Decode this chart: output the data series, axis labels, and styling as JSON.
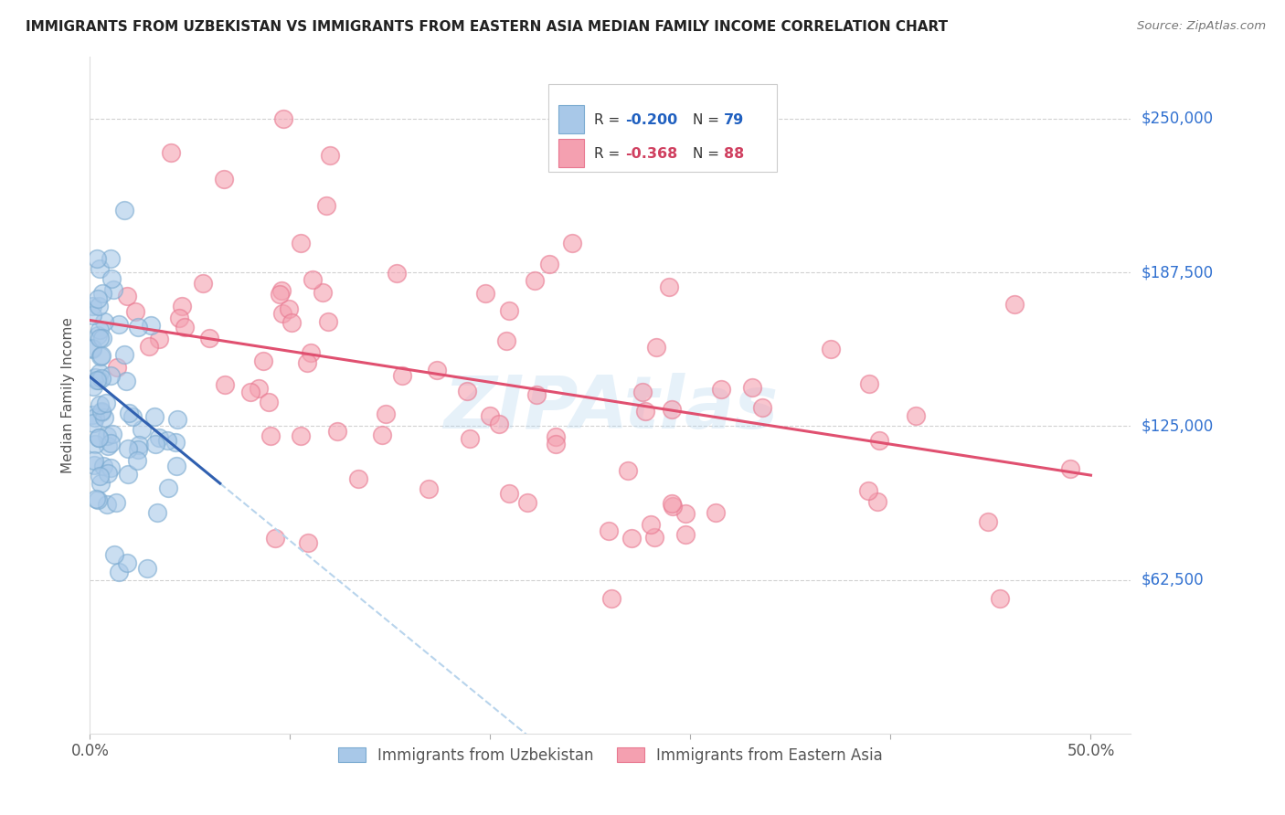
{
  "title": "IMMIGRANTS FROM UZBEKISTAN VS IMMIGRANTS FROM EASTERN ASIA MEDIAN FAMILY INCOME CORRELATION CHART",
  "source": "Source: ZipAtlas.com",
  "ylabel": "Median Family Income",
  "yticks": [
    62500,
    125000,
    187500,
    250000
  ],
  "ytick_labels": [
    "$62,500",
    "$125,000",
    "$187,500",
    "$250,000"
  ],
  "xlim": [
    0.0,
    0.52
  ],
  "ylim": [
    0,
    275000
  ],
  "watermark": "ZIPAtlas",
  "blue_color": "#a8c8e8",
  "pink_color": "#f4a0b0",
  "blue_edge_color": "#7aaad0",
  "pink_edge_color": "#e87890",
  "blue_line_color": "#3060b0",
  "pink_line_color": "#e05070",
  "dashed_line_color": "#b8d4ec",
  "legend_blue_color": "#a8c8e8",
  "legend_pink_color": "#f4a0b0",
  "r_blue_color": "#2060c0",
  "r_pink_color": "#d04060",
  "n_blue_color": "#2060c0",
  "n_pink_color": "#d04060"
}
